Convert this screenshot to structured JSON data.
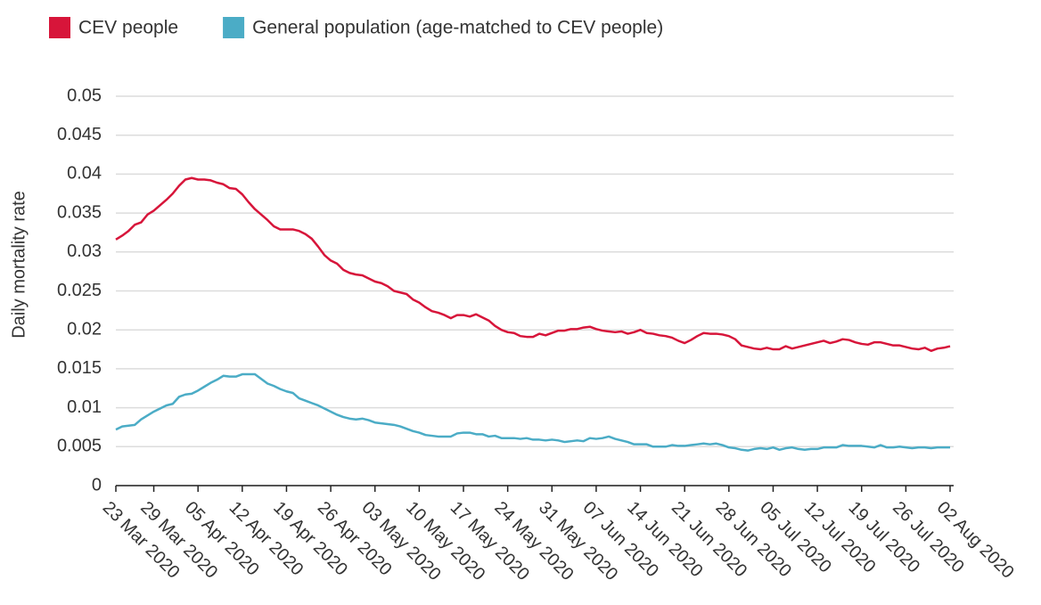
{
  "chart_data": {
    "type": "line",
    "ylabel": "Daily mortality rate",
    "categories": [
      "23 Mar 2020",
      null,
      null,
      null,
      null,
      null,
      "29 Mar 2020",
      null,
      null,
      null,
      null,
      null,
      null,
      "05 Apr 2020",
      null,
      null,
      null,
      null,
      null,
      null,
      "12 Apr 2020",
      null,
      null,
      null,
      null,
      null,
      null,
      "19 Apr 2020",
      null,
      null,
      null,
      null,
      null,
      null,
      "26 Apr 2020",
      null,
      null,
      null,
      null,
      null,
      null,
      "03 May 2020",
      null,
      null,
      null,
      null,
      null,
      null,
      "10 May 2020",
      null,
      null,
      null,
      null,
      null,
      null,
      "17 May 2020",
      null,
      null,
      null,
      null,
      null,
      null,
      "24 May 2020",
      null,
      null,
      null,
      null,
      null,
      null,
      "31 May 2020",
      null,
      null,
      null,
      null,
      null,
      null,
      "07 Jun 2020",
      null,
      null,
      null,
      null,
      null,
      null,
      "14 Jun 2020",
      null,
      null,
      null,
      null,
      null,
      null,
      "21 Jun 2020",
      null,
      null,
      null,
      null,
      null,
      null,
      "28 Jun 2020",
      null,
      null,
      null,
      null,
      null,
      null,
      "05 Jul 2020",
      null,
      null,
      null,
      null,
      null,
      null,
      "12 Jul 2020",
      null,
      null,
      null,
      null,
      null,
      null,
      "19 Jul 2020",
      null,
      null,
      null,
      null,
      null,
      null,
      "26 Jul 2020",
      null,
      null,
      null,
      null,
      null,
      null,
      "02 Aug 2020"
    ],
    "series": [
      {
        "name": "CEV people",
        "color": "#d7153a",
        "values": [
          0.0316,
          0.0321,
          0.0327,
          0.0335,
          0.0338,
          0.0348,
          0.0353,
          0.036,
          0.0367,
          0.0375,
          0.0385,
          0.0393,
          0.0395,
          0.0393,
          0.0393,
          0.0392,
          0.0389,
          0.0387,
          0.0382,
          0.0381,
          0.0374,
          0.0364,
          0.0355,
          0.0348,
          0.0341,
          0.0333,
          0.0329,
          0.0329,
          0.0329,
          0.0327,
          0.0323,
          0.0317,
          0.0307,
          0.0296,
          0.0289,
          0.0285,
          0.0277,
          0.0273,
          0.0271,
          0.027,
          0.0266,
          0.0262,
          0.026,
          0.0256,
          0.025,
          0.0248,
          0.0246,
          0.0239,
          0.0235,
          0.0229,
          0.0224,
          0.0222,
          0.0219,
          0.0215,
          0.0219,
          0.0219,
          0.0217,
          0.022,
          0.0216,
          0.0212,
          0.0205,
          0.02,
          0.0197,
          0.0196,
          0.0192,
          0.0191,
          0.0191,
          0.0195,
          0.0193,
          0.0196,
          0.0199,
          0.0199,
          0.0201,
          0.0201,
          0.0203,
          0.0204,
          0.0201,
          0.0199,
          0.0198,
          0.0197,
          0.0198,
          0.0195,
          0.0197,
          0.02,
          0.0196,
          0.0195,
          0.0193,
          0.0192,
          0.019,
          0.0186,
          0.0183,
          0.0187,
          0.0192,
          0.0196,
          0.0195,
          0.0195,
          0.0194,
          0.0192,
          0.0188,
          0.018,
          0.0178,
          0.0176,
          0.0175,
          0.0177,
          0.0175,
          0.0175,
          0.0179,
          0.0176,
          0.0178,
          0.018,
          0.0182,
          0.0184,
          0.0186,
          0.0183,
          0.0185,
          0.0188,
          0.0187,
          0.0184,
          0.0182,
          0.0181,
          0.0184,
          0.0184,
          0.0182,
          0.018,
          0.018,
          0.0178,
          0.0176,
          0.0175,
          0.0177,
          0.0173,
          0.0176,
          0.0177,
          0.0179
        ]
      },
      {
        "name": "General population (age-matched to CEV people)",
        "color": "#4bacc6",
        "values": [
          0.0072,
          0.0076,
          0.0077,
          0.0078,
          0.0085,
          0.009,
          0.0095,
          0.0099,
          0.0103,
          0.0105,
          0.0114,
          0.0117,
          0.0118,
          0.0122,
          0.0127,
          0.0132,
          0.0136,
          0.0141,
          0.014,
          0.014,
          0.0143,
          0.0143,
          0.0143,
          0.0137,
          0.0131,
          0.0128,
          0.0124,
          0.0121,
          0.0119,
          0.0112,
          0.0109,
          0.0106,
          0.0103,
          0.0099,
          0.0095,
          0.0091,
          0.0088,
          0.0086,
          0.0085,
          0.0086,
          0.0084,
          0.0081,
          0.008,
          0.0079,
          0.0078,
          0.0076,
          0.0073,
          0.007,
          0.0068,
          0.0065,
          0.0064,
          0.0063,
          0.0063,
          0.0063,
          0.0067,
          0.0068,
          0.0068,
          0.0066,
          0.0066,
          0.0063,
          0.0064,
          0.0061,
          0.0061,
          0.0061,
          0.006,
          0.0061,
          0.0059,
          0.0059,
          0.0058,
          0.0059,
          0.0058,
          0.0056,
          0.0057,
          0.0058,
          0.0057,
          0.0061,
          0.006,
          0.0061,
          0.0063,
          0.006,
          0.0058,
          0.0056,
          0.0053,
          0.0053,
          0.0053,
          0.005,
          0.005,
          0.005,
          0.0052,
          0.0051,
          0.0051,
          0.0052,
          0.0053,
          0.0054,
          0.0053,
          0.0054,
          0.0052,
          0.0049,
          0.0048,
          0.0046,
          0.0045,
          0.0047,
          0.0048,
          0.0047,
          0.0049,
          0.0046,
          0.0048,
          0.0049,
          0.0047,
          0.0046,
          0.0047,
          0.0047,
          0.0049,
          0.0049,
          0.0049,
          0.0052,
          0.0051,
          0.0051,
          0.0051,
          0.005,
          0.0049,
          0.0052,
          0.0049,
          0.0049,
          0.005,
          0.0049,
          0.0048,
          0.0049,
          0.0049,
          0.0048,
          0.0049,
          0.0049,
          0.0049
        ]
      }
    ],
    "ylim": [
      0,
      0.05
    ],
    "yticks": [
      0,
      0.005,
      0.01,
      0.015,
      0.02,
      0.025,
      0.03,
      0.035,
      0.04,
      0.045,
      0.05
    ],
    "grid": true
  }
}
